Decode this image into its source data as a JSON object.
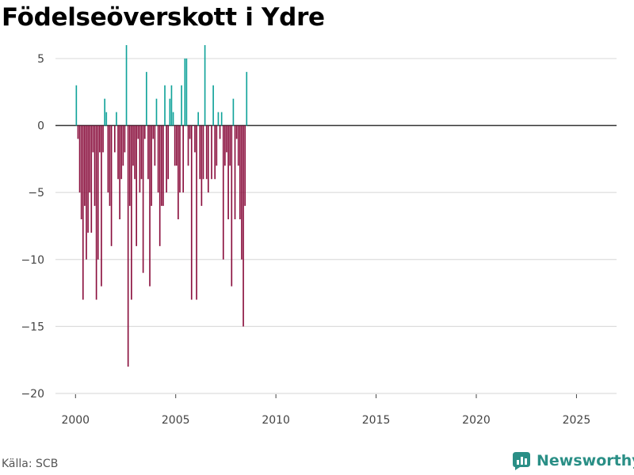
{
  "title": "Födelseöverskott i Ydre",
  "source": "Källa: SCB",
  "brand": {
    "name": "Newsworthy",
    "icon": "newsworthy-logo-icon"
  },
  "colors": {
    "positive": "#11a39a",
    "negative": "#8a0f3d",
    "zero_line": "#333333",
    "grid": "#dddddd"
  },
  "chart_data": {
    "type": "bar",
    "title": "Födelseöverskott i Ydre",
    "xlabel": "",
    "ylabel": "",
    "ylim": [
      -20,
      6
    ],
    "xlim": [
      1999.0,
      2027.0
    ],
    "y_ticks": [
      5,
      0,
      -5,
      -10,
      -15,
      -20
    ],
    "y_tick_labels": [
      "5",
      "0",
      "−5",
      "−10",
      "−15",
      "−20"
    ],
    "x_ticks": [
      2000,
      2005,
      2010,
      2015,
      2020,
      2025
    ],
    "x_tick_labels": [
      "2000",
      "2005",
      "2010",
      "2015",
      "2020",
      "2025"
    ],
    "grid": true,
    "frequency": "monthly",
    "start": "2000-01",
    "values": [
      3,
      -1,
      -5,
      -7,
      -13,
      -6,
      -10,
      -8,
      -5,
      -8,
      -2,
      -6,
      -13,
      -10,
      -2,
      -12,
      -2,
      2,
      1,
      -5,
      -6,
      -9,
      0,
      -2,
      1,
      -4,
      -7,
      -4,
      -3,
      -2,
      6,
      -18,
      -6,
      -13,
      -3,
      -4,
      -9,
      -1,
      -5,
      -4,
      -11,
      -1,
      4,
      -4,
      -12,
      -6,
      -1,
      -3,
      2,
      -5,
      -9,
      -6,
      -6,
      3,
      -5,
      -4,
      2,
      3,
      1,
      -3,
      -3,
      -7,
      -5,
      3,
      -5,
      5,
      5,
      -3,
      -1,
      -13,
      0,
      -2,
      -13,
      1,
      -4,
      -6,
      -4,
      6,
      -4,
      -5,
      0,
      -4,
      3,
      -4,
      -3,
      1,
      -1,
      1,
      -10,
      -3,
      -2,
      -7,
      -3,
      -12,
      2,
      -7,
      -1,
      -3,
      -7,
      -10,
      -15,
      -6,
      4
    ]
  }
}
